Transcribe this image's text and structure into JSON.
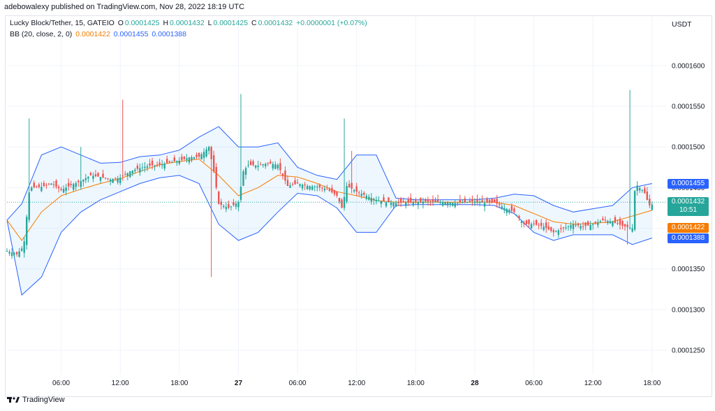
{
  "publisher_line": "adebowalexy published on TradingView.com, Nov 28, 2022 18:19 UTC",
  "legend": {
    "symbol": "Lucky Block/Tether, 15, GATEIO",
    "open_label": "O",
    "open": "0.0001425",
    "high_label": "H",
    "high": "0.0001432",
    "low_label": "L",
    "low": "0.0001425",
    "close_label": "C",
    "close": "0.0001432",
    "change": "+0.0000001 (+0.07%)",
    "bb_label": "BB (20, close, 2, 0)",
    "bb_basis": "0.0001422",
    "bb_upper": "0.0001455",
    "bb_lower": "0.0001388"
  },
  "price_scale_unit": "USDT",
  "last_price_tag": {
    "price": "0.0001432",
    "countdown": "10:51"
  },
  "footer_brand": "TradingView",
  "colors": {
    "up": "#26a69a",
    "down": "#ef5350",
    "basis": "#f57c00",
    "band": "#2962ff",
    "tag_blue": "#2962ff"
  },
  "chart_data": {
    "type": "candlestick",
    "y_ticks": [
      "0.0001600",
      "0.0001550",
      "0.0001500",
      "0.0001450",
      "0.0001400",
      "0.0001350",
      "0.0001300",
      "0.0001250"
    ],
    "y_tick_values": [
      0.00016,
      0.000155,
      0.00015,
      0.000145,
      0.00014,
      0.000135,
      0.00013,
      0.000125
    ],
    "ylim": [
      0.000122,
      0.000166
    ],
    "x_ticks": [
      "06:00",
      "12:00",
      "18:00",
      "27",
      "06:00",
      "12:00",
      "18:00",
      "28",
      "06:00",
      "12:00",
      "18:00"
    ],
    "x_tick_hours": [
      6,
      12,
      18,
      24,
      30,
      36,
      42,
      48,
      54,
      60,
      66
    ],
    "xlim_hours": [
      0.5,
      67.5
    ],
    "series": [
      {
        "name": "Basis",
        "hours": [
          0.5,
          2,
          4,
          6,
          8,
          10,
          12,
          14,
          16,
          18,
          20,
          22,
          24,
          26,
          28,
          30,
          32,
          34,
          36,
          38,
          40,
          42,
          44,
          46,
          48,
          50,
          52,
          54,
          56,
          58,
          60,
          62,
          64,
          66
        ],
        "values": [
          0.000141,
          0.0001385,
          0.000142,
          0.000144,
          0.0001448,
          0.0001455,
          0.0001461,
          0.000147,
          0.0001478,
          0.0001482,
          0.0001485,
          0.0001465,
          0.000144,
          0.000145,
          0.0001465,
          0.0001463,
          0.0001455,
          0.0001445,
          0.000144,
          0.0001434,
          0.0001432,
          0.0001432,
          0.0001432,
          0.0001432,
          0.0001432,
          0.0001432,
          0.0001428,
          0.0001418,
          0.0001408,
          0.0001405,
          0.0001406,
          0.0001408,
          0.0001415,
          0.0001422
        ]
      },
      {
        "name": "Upper",
        "hours": [
          0.5,
          2,
          4,
          6,
          8,
          10,
          12,
          14,
          16,
          18,
          20,
          22,
          24,
          26,
          28,
          30,
          32,
          34,
          36,
          38,
          40,
          42,
          44,
          46,
          48,
          50,
          52,
          54,
          56,
          58,
          60,
          62,
          64,
          66
        ],
        "values": [
          0.000141,
          0.000143,
          0.000149,
          0.00015,
          0.000149,
          0.000148,
          0.0001481,
          0.0001488,
          0.000149,
          0.0001496,
          0.0001512,
          0.0001525,
          0.00015,
          0.00015,
          0.0001505,
          0.0001475,
          0.0001465,
          0.000146,
          0.000149,
          0.000149,
          0.0001437,
          0.0001435,
          0.0001435,
          0.0001435,
          0.0001435,
          0.0001437,
          0.0001442,
          0.000144,
          0.0001428,
          0.000142,
          0.0001424,
          0.0001428,
          0.000145,
          0.0001455
        ]
      },
      {
        "name": "Lower",
        "hours": [
          0.5,
          2,
          4,
          6,
          8,
          10,
          12,
          14,
          16,
          18,
          20,
          22,
          24,
          26,
          28,
          30,
          32,
          34,
          36,
          38,
          40,
          42,
          44,
          46,
          48,
          50,
          52,
          54,
          56,
          58,
          60,
          62,
          64,
          66
        ],
        "values": [
          0.000141,
          0.0001318,
          0.000134,
          0.0001395,
          0.000142,
          0.0001435,
          0.0001445,
          0.0001455,
          0.0001462,
          0.0001465,
          0.0001455,
          0.0001405,
          0.0001385,
          0.0001395,
          0.000142,
          0.0001443,
          0.000144,
          0.0001425,
          0.0001395,
          0.0001395,
          0.0001428,
          0.0001429,
          0.0001429,
          0.0001429,
          0.0001429,
          0.0001428,
          0.0001418,
          0.0001395,
          0.0001385,
          0.0001392,
          0.0001392,
          0.0001392,
          0.000138,
          0.0001388
        ]
      },
      {
        "name": "Close",
        "hours": [
          0.5,
          1.5,
          2.2,
          2.8,
          4,
          5,
          6,
          7,
          8,
          9,
          10,
          11,
          12,
          13,
          14,
          15,
          16,
          17,
          18,
          19,
          20,
          21,
          21.5,
          22,
          23,
          24,
          24.5,
          25,
          26,
          27,
          28,
          29,
          30,
          31,
          32,
          33,
          34,
          34.5,
          35,
          36,
          37,
          38,
          39,
          40,
          41,
          42,
          43,
          44,
          45,
          46,
          47,
          48,
          49,
          50,
          51,
          52,
          53,
          54,
          55,
          56,
          57,
          58,
          59,
          60,
          61,
          62,
          63,
          64,
          64.3,
          64.7,
          65.2,
          65.7,
          66.2
        ],
        "values": [
          0.0001372,
          0.0001368,
          0.0001378,
          0.000145,
          0.0001451,
          0.0001455,
          0.0001447,
          0.0001453,
          0.0001458,
          0.0001465,
          0.0001463,
          0.000146,
          0.0001462,
          0.000147,
          0.0001474,
          0.0001477,
          0.0001478,
          0.0001481,
          0.0001483,
          0.0001487,
          0.0001488,
          0.00015,
          0.000147,
          0.000143,
          0.0001425,
          0.0001432,
          0.000147,
          0.0001478,
          0.0001477,
          0.000148,
          0.0001478,
          0.0001452,
          0.0001455,
          0.0001452,
          0.0001451,
          0.0001448,
          0.000144,
          0.0001425,
          0.0001452,
          0.0001445,
          0.000144,
          0.0001435,
          0.0001432,
          0.0001431,
          0.0001432,
          0.0001432,
          0.0001433,
          0.0001432,
          0.0001432,
          0.0001431,
          0.0001432,
          0.0001433,
          0.0001431,
          0.0001432,
          0.0001425,
          0.000142,
          0.0001405,
          0.0001405,
          0.0001402,
          0.0001395,
          0.00014,
          0.0001405,
          0.0001402,
          0.0001405,
          0.000141,
          0.0001408,
          0.0001403,
          0.00014,
          0.0001455,
          0.000145,
          0.0001445,
          0.0001428,
          0.000143
        ]
      }
    ]
  }
}
